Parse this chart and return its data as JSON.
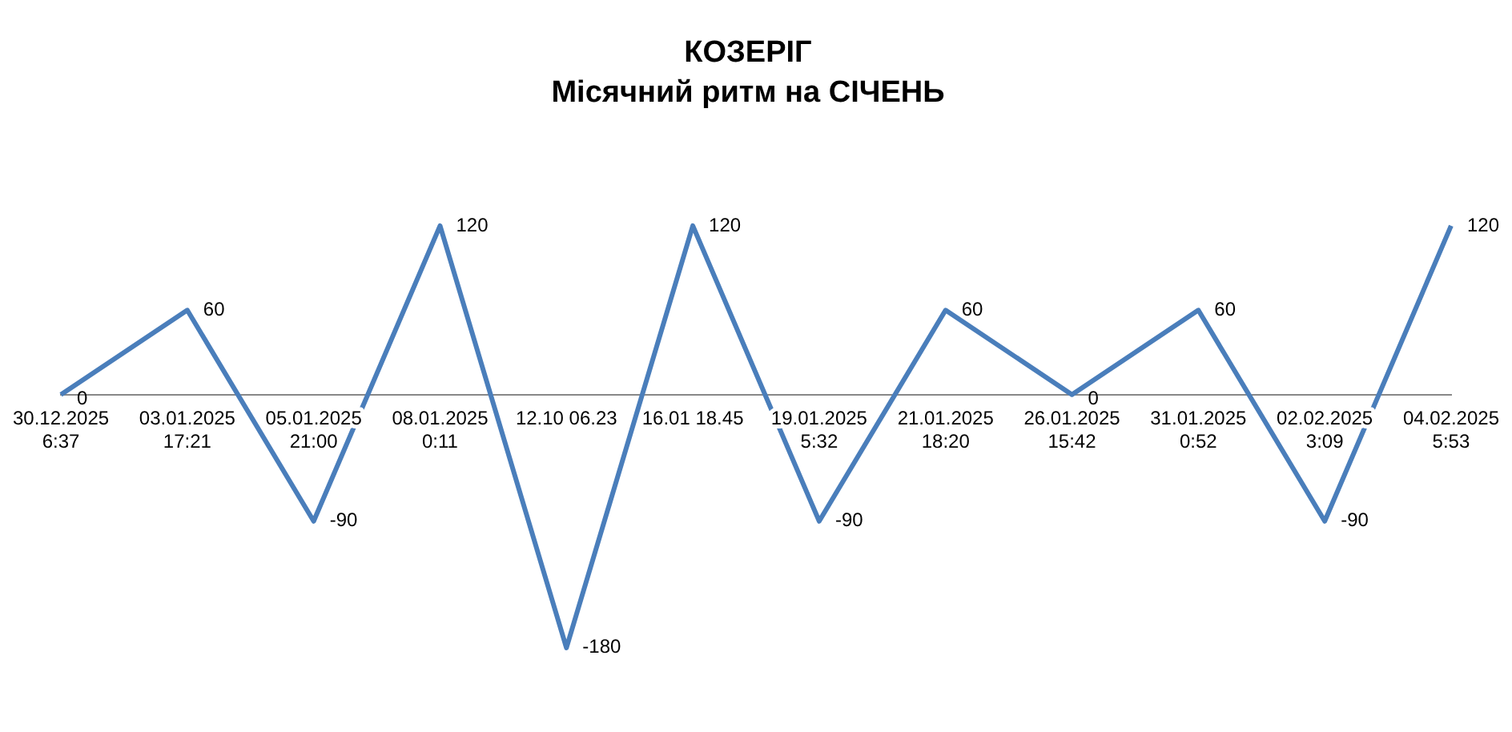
{
  "chart_data": {
    "type": "line",
    "title": "КОЗЕРІГ",
    "subtitle": "Місячний ритм на СІЧЕНЬ",
    "categories": [
      "30.12.2025\n6:37",
      "03.01.2025\n17:21",
      "05.01.2025\n21:00",
      "08.01.2025\n0:11",
      "12.10 06.23",
      "16.01 18.45",
      "19.01.2025\n5:32",
      "21.01.2025\n18:20",
      "26.01.2025\n15:42",
      "31.01.2025\n0:52",
      "02.02.2025\n3:09",
      "04.02.2025\n5:53"
    ],
    "series": [
      {
        "color": "#4a7ebb",
        "values": [
          0,
          60,
          -90,
          120,
          -180,
          120,
          -90,
          60,
          0,
          60,
          -90,
          120
        ]
      }
    ],
    "data_labels": true,
    "grid": false,
    "legend": false,
    "marker": "none",
    "line_style": "solid",
    "tick_labels": "x"
  }
}
